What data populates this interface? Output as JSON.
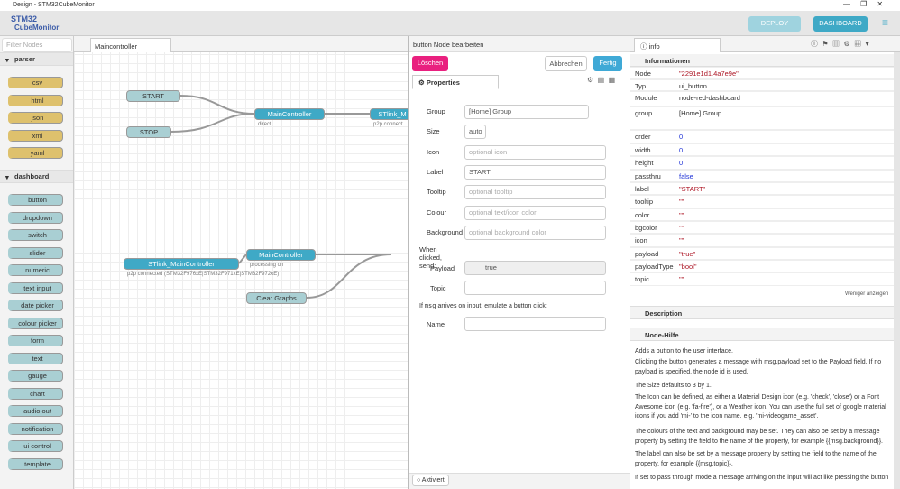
{
  "window": {
    "title": "Design - STM32CubeMonitor"
  },
  "header": {
    "logo_top": "STM32",
    "logo_bottom": "CubeMonitor",
    "deploy": "DEPLOY",
    "dashboard": "DASHBOARD"
  },
  "palette": {
    "filter": "Filter Nodes",
    "categories": [
      {
        "name": "parser",
        "nodes": [
          "csv",
          "html",
          "json",
          "xml",
          "yaml"
        ]
      },
      {
        "name": "dashboard",
        "nodes": [
          "button",
          "dropdown",
          "switch",
          "slider",
          "numeric",
          "text input",
          "date picker",
          "colour picker",
          "form",
          "text",
          "gauge",
          "chart",
          "audio out",
          "notification",
          "ui control",
          "template"
        ]
      }
    ]
  },
  "workspace": {
    "tab": "Maincontroller",
    "nodes": [
      {
        "label": "START"
      },
      {
        "label": "STOP"
      },
      {
        "label": "MainController",
        "status": "direct"
      },
      {
        "label": "STlink_M",
        "status": "p2p connect"
      },
      {
        "label": "STlink_MainController",
        "status": "p2p connected (STM32F976xE|STM32F971xE|STM32F972xE)"
      },
      {
        "label": "MainController",
        "status": "processing on"
      },
      {
        "label": "Clear Graphs"
      }
    ]
  },
  "editor": {
    "title": "button Node bearbeiten",
    "delete": "Löschen",
    "cancel": "Abbrechen",
    "done": "Fertig",
    "tab": "Properties",
    "fields": [
      {
        "label": "Group",
        "value": "[Home] Group"
      },
      {
        "label": "Size",
        "value": "auto"
      },
      {
        "label": "Icon",
        "placeholder": "optional icon"
      },
      {
        "label": "Label",
        "value": "START"
      },
      {
        "label": "Tooltip",
        "placeholder": "optional tooltip"
      },
      {
        "label": "Colour",
        "placeholder": "optional text/icon color"
      },
      {
        "label": "Background",
        "placeholder": "optional background color"
      }
    ],
    "send": "When clicked, send:",
    "payload_label": "Payload",
    "payload_value": "true",
    "topic_label": "Topic",
    "emulate": [
      "If ",
      "msg",
      " arrives on input, emulate a button click:"
    ],
    "name_label": "Name",
    "enabled": "Aktiviert"
  },
  "info": {
    "tab": "info",
    "section": "Informationen",
    "rows": [
      [
        "Node",
        "\"2291e1d1.4a7e9e\""
      ],
      [
        "Typ",
        "ui_button"
      ],
      [
        "Module",
        "node-red-dashboard"
      ],
      [
        "group",
        "[Home] Group"
      ],
      [
        "order",
        "0"
      ],
      [
        "width",
        "0"
      ],
      [
        "height",
        "0"
      ],
      [
        "passthru",
        "false"
      ],
      [
        "label",
        "\"START\""
      ],
      [
        "tooltip",
        "\"\""
      ],
      [
        "color",
        "\"\""
      ],
      [
        "bgcolor",
        "\"\""
      ],
      [
        "icon",
        "\"\""
      ],
      [
        "payload",
        "\"true\""
      ],
      [
        "payloadType",
        "\"bool\""
      ],
      [
        "topic",
        "\"\""
      ]
    ],
    "less": "Weniger anzeigen",
    "description": "Description",
    "help": "Node-Hilfe",
    "paragraphs": [
      "Adds a button to the user interface.",
      "Clicking the button generates a message with msg.payload set to the Payload field. If no payload is specified, the node id is used.",
      "The Size defaults to 3 by 1.",
      "The Icon can be defined, as either a Material Design icon (e.g. 'check', 'close') or a Font Awesome icon (e.g. 'fa-fire'), or a Weather icon. You can use the full set of google material icons if you add 'mi-' to the icon name. e.g. 'mi-videogame_asset'.",
      "The colours of the text and background may be set. They can also be set by a message property by setting the field to the name of the property, for example {{msg.background}}.",
      "The label can also be set by a message property by setting the field to the name of the property, for example {{msg.topic}}.",
      "If set to pass through mode a message arriving on the input will act like pressing the button"
    ]
  }
}
